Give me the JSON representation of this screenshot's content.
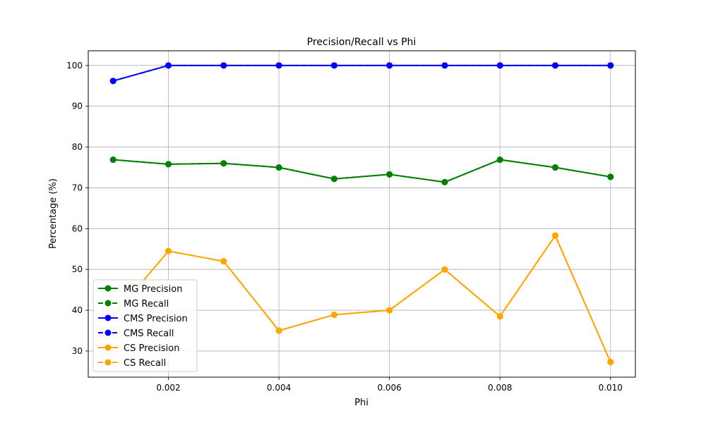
{
  "chart_data": {
    "type": "line",
    "title": "Precision/Recall vs Phi",
    "xlabel": "Phi",
    "ylabel": "Percentage (%)",
    "xlim": [
      0.00055,
      0.01045
    ],
    "ylim": [
      23.6,
      103.6
    ],
    "xticks": [
      0.002,
      0.004,
      0.006,
      0.008,
      0.01
    ],
    "xtick_labels": [
      "0.002",
      "0.004",
      "0.006",
      "0.008",
      "0.010"
    ],
    "yticks": [
      30,
      40,
      50,
      60,
      70,
      80,
      90,
      100
    ],
    "ytick_labels": [
      "30",
      "40",
      "50",
      "60",
      "70",
      "80",
      "90",
      "100"
    ],
    "grid": true,
    "legend_position": "lower-left",
    "x": [
      0.001,
      0.002,
      0.003,
      0.004,
      0.005,
      0.006,
      0.007,
      0.008,
      0.009,
      0.01
    ],
    "series": [
      {
        "name": "MG Precision",
        "color": "#008000",
        "linestyle": "solid",
        "marker": "circle",
        "values": [
          76.9,
          75.8,
          76.0,
          75.0,
          72.2,
          73.3,
          71.4,
          76.9,
          75.0,
          72.7
        ]
      },
      {
        "name": "MG Recall",
        "color": "#008000",
        "linestyle": "dashed",
        "marker": "circle",
        "values": [
          76.9,
          75.8,
          76.0,
          75.0,
          72.2,
          73.3,
          71.4,
          76.9,
          75.0,
          72.7
        ]
      },
      {
        "name": "CMS Precision",
        "color": "#0000ff",
        "linestyle": "solid",
        "marker": "circle",
        "values": [
          96.2,
          100,
          100,
          100,
          100,
          100,
          100,
          100,
          100,
          100
        ]
      },
      {
        "name": "CMS Recall",
        "color": "#0000ff",
        "linestyle": "dashed",
        "marker": "circle",
        "values": [
          96.2,
          100,
          100,
          100,
          100,
          100,
          100,
          100,
          100,
          100
        ]
      },
      {
        "name": "CS Precision",
        "color": "#ffa500",
        "linestyle": "solid",
        "marker": "circle",
        "values": [
          38.5,
          54.5,
          52.0,
          35.0,
          38.9,
          40.0,
          50.0,
          38.5,
          58.3,
          27.3
        ]
      },
      {
        "name": "CS Recall",
        "color": "#ffa500",
        "linestyle": "dashed",
        "marker": "circle",
        "values": [
          38.5,
          54.5,
          52.0,
          35.0,
          38.9,
          40.0,
          50.0,
          38.5,
          58.3,
          27.3
        ]
      }
    ]
  }
}
